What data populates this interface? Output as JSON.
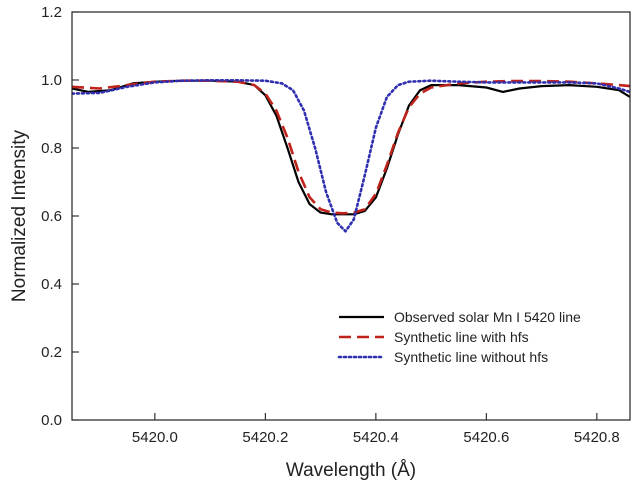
{
  "chart_data": {
    "type": "line",
    "title": "",
    "xlabel": "Wavelength (Å)",
    "ylabel": "Normalized Intensity",
    "xlim": [
      5419.85,
      5420.86
    ],
    "ylim": [
      0.0,
      1.2
    ],
    "x_ticks": [
      5420.0,
      5420.2,
      5420.4,
      5420.6,
      5420.8
    ],
    "x_tick_labels": [
      "5420.0",
      "5420.2",
      "5420.4",
      "5420.6",
      "5420.8"
    ],
    "y_ticks": [
      0.0,
      0.2,
      0.4,
      0.6,
      0.8,
      1.0,
      1.2
    ],
    "y_tick_labels": [
      "0.0",
      "0.2",
      "0.4",
      "0.6",
      "0.8",
      "1.0",
      "1.2"
    ],
    "grid": false,
    "legend_position": "bottom-right",
    "series": [
      {
        "name": "Observed solar Mn I 5420 line",
        "color": "#000000",
        "dash": "solid",
        "x": [
          5419.85,
          5419.88,
          5419.92,
          5419.96,
          5420.0,
          5420.05,
          5420.1,
          5420.15,
          5420.18,
          5420.2,
          5420.22,
          5420.24,
          5420.26,
          5420.28,
          5420.3,
          5420.32,
          5420.34,
          5420.36,
          5420.38,
          5420.4,
          5420.42,
          5420.44,
          5420.46,
          5420.48,
          5420.5,
          5420.55,
          5420.6,
          5420.63,
          5420.66,
          5420.7,
          5420.75,
          5420.8,
          5420.84,
          5420.86
        ],
        "y": [
          0.975,
          0.965,
          0.97,
          0.99,
          0.995,
          0.998,
          0.998,
          0.995,
          0.985,
          0.955,
          0.895,
          0.8,
          0.7,
          0.635,
          0.61,
          0.605,
          0.605,
          0.605,
          0.615,
          0.655,
          0.74,
          0.84,
          0.925,
          0.97,
          0.985,
          0.985,
          0.978,
          0.965,
          0.975,
          0.982,
          0.985,
          0.98,
          0.97,
          0.95
        ]
      },
      {
        "name": "Synthetic line with hfs",
        "color": "#c0231b",
        "dash": "dashed",
        "x": [
          5419.85,
          5419.9,
          5419.95,
          5420.0,
          5420.05,
          5420.1,
          5420.15,
          5420.18,
          5420.2,
          5420.22,
          5420.24,
          5420.26,
          5420.28,
          5420.3,
          5420.32,
          5420.34,
          5420.36,
          5420.38,
          5420.4,
          5420.42,
          5420.44,
          5420.46,
          5420.48,
          5420.5,
          5420.55,
          5420.6,
          5420.65,
          5420.7,
          5420.75,
          5420.8,
          5420.84,
          5420.86
        ],
        "y": [
          0.98,
          0.975,
          0.985,
          0.995,
          0.998,
          0.998,
          0.995,
          0.985,
          0.96,
          0.91,
          0.83,
          0.73,
          0.655,
          0.62,
          0.61,
          0.608,
          0.61,
          0.62,
          0.665,
          0.75,
          0.845,
          0.92,
          0.96,
          0.978,
          0.99,
          0.995,
          0.997,
          0.997,
          0.995,
          0.99,
          0.985,
          0.982
        ]
      },
      {
        "name": "Synthetic line without hfs",
        "color": "#2f2fb0",
        "dash": "dotted",
        "x": [
          5419.85,
          5419.9,
          5419.95,
          5420.0,
          5420.05,
          5420.1,
          5420.15,
          5420.2,
          5420.23,
          5420.25,
          5420.27,
          5420.29,
          5420.31,
          5420.33,
          5420.345,
          5420.36,
          5420.38,
          5420.4,
          5420.42,
          5420.44,
          5420.46,
          5420.5,
          5420.55,
          5420.6,
          5420.65,
          5420.7,
          5420.75,
          5420.8,
          5420.84,
          5420.86
        ],
        "y": [
          0.96,
          0.962,
          0.98,
          0.993,
          0.998,
          0.999,
          0.999,
          0.998,
          0.99,
          0.97,
          0.91,
          0.8,
          0.67,
          0.58,
          0.555,
          0.59,
          0.72,
          0.86,
          0.95,
          0.985,
          0.995,
          0.998,
          0.995,
          0.993,
          0.993,
          0.993,
          0.993,
          0.99,
          0.975,
          0.965
        ]
      }
    ]
  }
}
